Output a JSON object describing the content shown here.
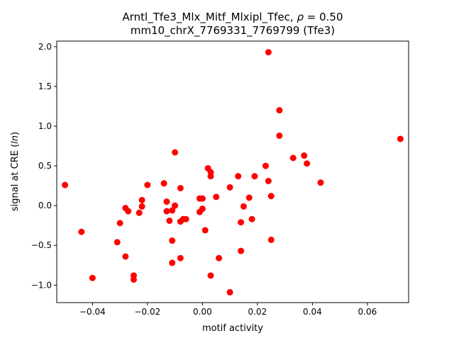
{
  "chart_data": {
    "type": "scatter",
    "title_line1_prefix": "Arntl_Tfe3_Mlx_Mitf_Mlxipl_Tfec, ",
    "title_line1_rho": "ρ",
    "title_line1_suffix": " = 0.50",
    "title_line2": "mm10_chrX_7769331_7769799 (Tfe3)",
    "xlabel": "motif activity",
    "ylabel_prefix": "signal at CRE (",
    "ylabel_ln": "ln",
    "ylabel_suffix": ")",
    "xlim": [
      -0.053,
      0.075
    ],
    "ylim": [
      -1.22,
      2.07
    ],
    "x_ticks": [
      -0.04,
      -0.02,
      0.0,
      0.02,
      0.04,
      0.06
    ],
    "x_tick_labels": [
      "−0.04",
      "−0.02",
      "0.00",
      "0.02",
      "0.04",
      "0.06"
    ],
    "y_ticks": [
      -1.0,
      -0.5,
      0.0,
      0.5,
      1.0,
      1.5,
      2.0
    ],
    "y_tick_labels": [
      "−1.0",
      "−0.5",
      "0.0",
      "0.5",
      "1.0",
      "1.5",
      "2.0"
    ],
    "marker_color": "#ff0000",
    "grid": false,
    "points": [
      [
        -0.05,
        0.26
      ],
      [
        -0.044,
        -0.33
      ],
      [
        -0.04,
        -0.91
      ],
      [
        -0.031,
        -0.46
      ],
      [
        -0.03,
        -0.22
      ],
      [
        -0.028,
        -0.64
      ],
      [
        -0.028,
        -0.03
      ],
      [
        -0.027,
        -0.07
      ],
      [
        -0.025,
        -0.88
      ],
      [
        -0.025,
        -0.93
      ],
      [
        -0.023,
        -0.09
      ],
      [
        -0.022,
        0.07
      ],
      [
        -0.022,
        -0.01
      ],
      [
        -0.02,
        0.26
      ],
      [
        -0.014,
        0.28
      ],
      [
        -0.013,
        0.05
      ],
      [
        -0.013,
        -0.07
      ],
      [
        -0.012,
        -0.19
      ],
      [
        -0.011,
        -0.72
      ],
      [
        -0.011,
        -0.44
      ],
      [
        -0.011,
        -0.06
      ],
      [
        -0.01,
        0.0
      ],
      [
        -0.01,
        0.67
      ],
      [
        -0.008,
        -0.66
      ],
      [
        -0.008,
        0.22
      ],
      [
        -0.008,
        -0.2
      ],
      [
        -0.007,
        -0.17
      ],
      [
        -0.006,
        -0.17
      ],
      [
        -0.001,
        0.09
      ],
      [
        -0.001,
        -0.08
      ],
      [
        0.0,
        0.09
      ],
      [
        0.0,
        -0.04
      ],
      [
        0.001,
        -0.31
      ],
      [
        0.002,
        0.47
      ],
      [
        0.003,
        0.42
      ],
      [
        0.003,
        0.37
      ],
      [
        0.003,
        -0.88
      ],
      [
        0.005,
        0.11
      ],
      [
        0.006,
        -0.66
      ],
      [
        0.01,
        0.23
      ],
      [
        0.01,
        -1.09
      ],
      [
        0.013,
        0.37
      ],
      [
        0.014,
        -0.57
      ],
      [
        0.014,
        -0.21
      ],
      [
        0.015,
        -0.01
      ],
      [
        0.017,
        0.1
      ],
      [
        0.018,
        -0.17
      ],
      [
        0.019,
        0.37
      ],
      [
        0.023,
        0.5
      ],
      [
        0.024,
        0.31
      ],
      [
        0.024,
        1.93
      ],
      [
        0.025,
        0.12
      ],
      [
        0.025,
        -0.43
      ],
      [
        0.028,
        1.2
      ],
      [
        0.028,
        0.88
      ],
      [
        0.033,
        0.6
      ],
      [
        0.037,
        0.63
      ],
      [
        0.038,
        0.53
      ],
      [
        0.043,
        0.29
      ],
      [
        0.072,
        0.84
      ]
    ]
  }
}
